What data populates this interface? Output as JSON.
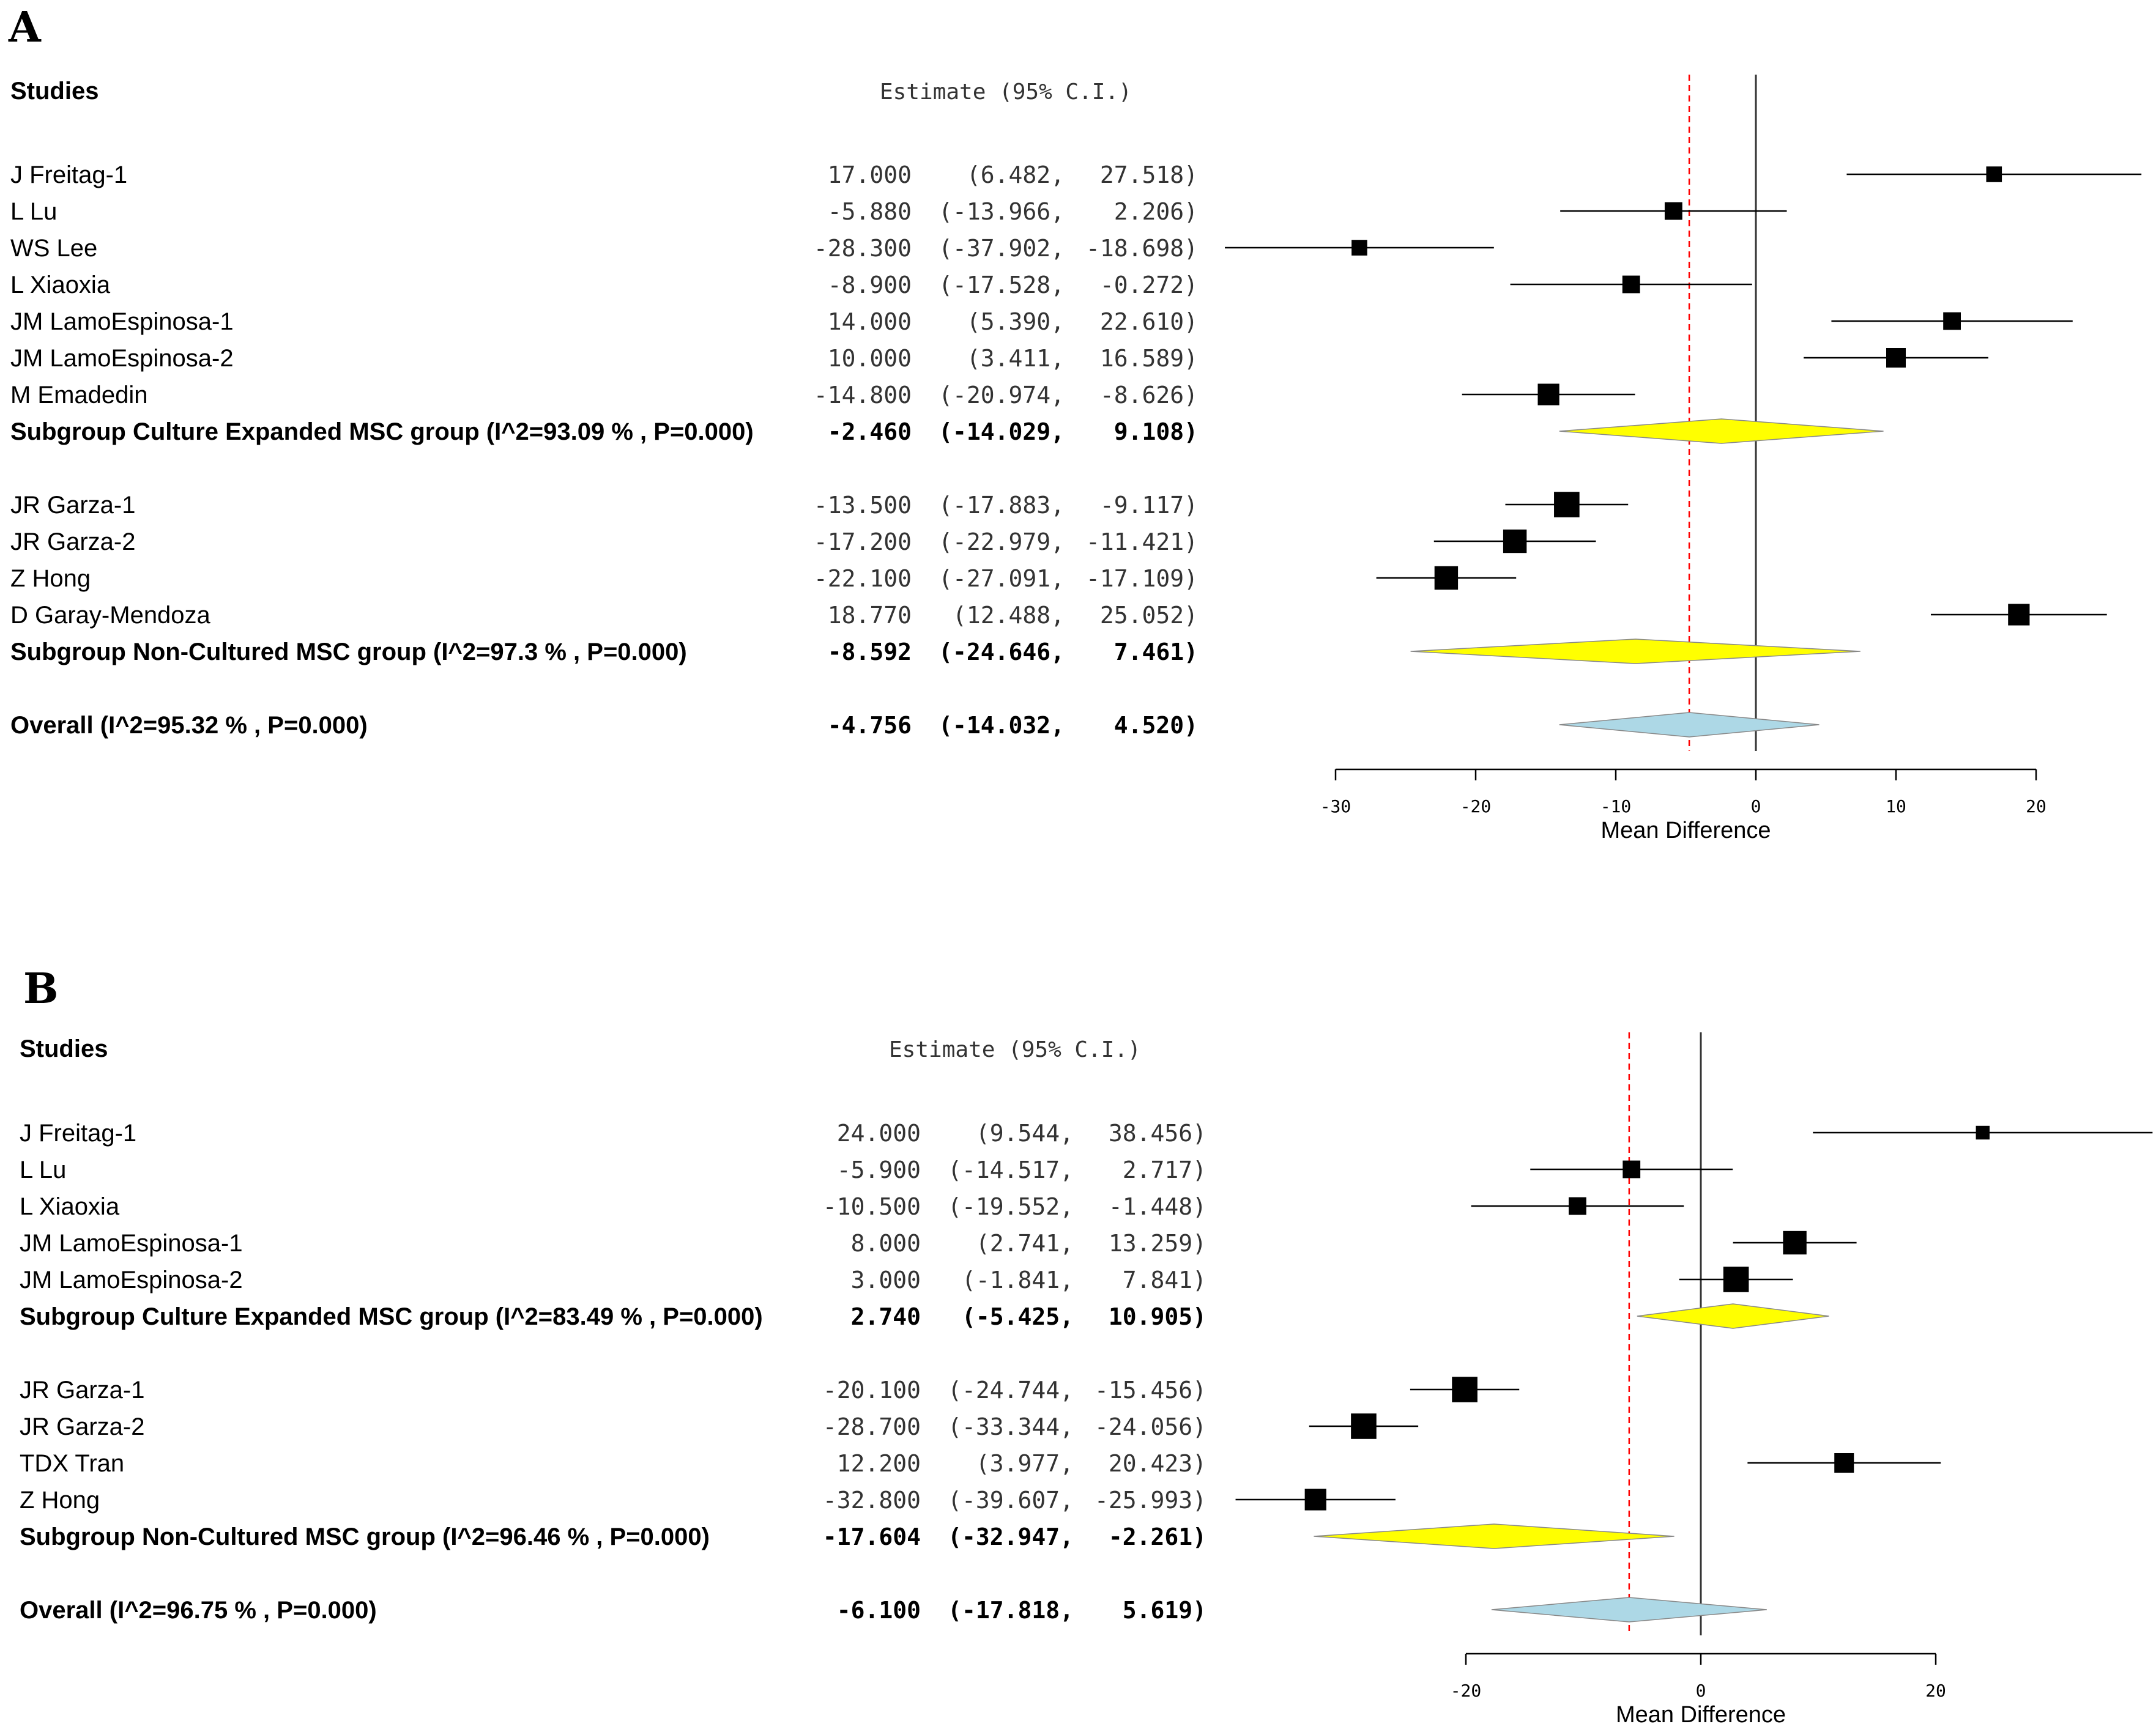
{
  "chart_data": [
    {
      "type": "forest",
      "panel_label": "A",
      "col_studies": "Studies",
      "col_estimate": "Estimate (95% C.I.)",
      "xlabel": "Mean Difference",
      "xticks": [
        -30,
        -20,
        -10,
        0,
        10,
        20
      ],
      "xlim": [
        -30,
        20
      ],
      "overall_reference": -4.756,
      "null_line": 0,
      "rows": [
        {
          "kind": "study",
          "label": "J Freitag-1",
          "est": 17.0,
          "lo": 6.482,
          "hi": 27.518,
          "est_text": "17.000",
          "lo_text": "(6.482,",
          "hi_text": "27.518)",
          "weight": 0.8
        },
        {
          "kind": "study",
          "label": "L Lu",
          "est": -5.88,
          "lo": -13.966,
          "hi": 2.206,
          "est_text": "-5.880",
          "lo_text": "(-13.966,",
          "hi_text": "2.206)",
          "weight": 0.9
        },
        {
          "kind": "study",
          "label": "WS Lee",
          "est": -28.3,
          "lo": -37.902,
          "hi": -18.698,
          "est_text": "-28.300",
          "lo_text": "(-37.902,",
          "hi_text": "-18.698)",
          "weight": 0.8
        },
        {
          "kind": "study",
          "label": "L Xiaoxia",
          "est": -8.9,
          "lo": -17.528,
          "hi": -0.272,
          "est_text": "-8.900",
          "lo_text": "(-17.528,",
          "hi_text": "-0.272)",
          "weight": 0.9
        },
        {
          "kind": "study",
          "label": "JM LamoEspinosa-1",
          "est": 14.0,
          "lo": 5.39,
          "hi": 22.61,
          "est_text": "14.000",
          "lo_text": "(5.390,",
          "hi_text": "22.610)",
          "weight": 0.9
        },
        {
          "kind": "study",
          "label": "JM LamoEspinosa-2",
          "est": 10.0,
          "lo": 3.411,
          "hi": 16.589,
          "est_text": "10.000",
          "lo_text": "(3.411,",
          "hi_text": "16.589)",
          "weight": 1.0
        },
        {
          "kind": "study",
          "label": "M Emadedin",
          "est": -14.8,
          "lo": -20.974,
          "hi": -8.626,
          "est_text": "-14.800",
          "lo_text": "(-20.974,",
          "hi_text": "-8.626)",
          "weight": 1.1
        },
        {
          "kind": "subgroup",
          "label": "Subgroup Culture Expanded MSC group (I^2=93.09 % , P=0.000)",
          "est": -2.46,
          "lo": -14.029,
          "hi": 9.108,
          "est_text": "-2.460",
          "lo_text": "(-14.029,",
          "hi_text": "9.108)",
          "fill": "#ffff00"
        },
        {
          "kind": "gap"
        },
        {
          "kind": "study",
          "label": "JR Garza-1",
          "est": -13.5,
          "lo": -17.883,
          "hi": -9.117,
          "est_text": "-13.500",
          "lo_text": "(-17.883,",
          "hi_text": "-9.117)",
          "weight": 1.3
        },
        {
          "kind": "study",
          "label": "JR Garza-2",
          "est": -17.2,
          "lo": -22.979,
          "hi": -11.421,
          "est_text": "-17.200",
          "lo_text": "(-22.979,",
          "hi_text": "-11.421)",
          "weight": 1.2
        },
        {
          "kind": "study",
          "label": "Z Hong",
          "est": -22.1,
          "lo": -27.091,
          "hi": -17.109,
          "est_text": "-22.100",
          "lo_text": "(-27.091,",
          "hi_text": "-17.109)",
          "weight": 1.2
        },
        {
          "kind": "study",
          "label": "D Garay-Mendoza",
          "est": 18.77,
          "lo": 12.488,
          "hi": 25.052,
          "est_text": "18.770",
          "lo_text": "(12.488,",
          "hi_text": "25.052)",
          "weight": 1.1
        },
        {
          "kind": "subgroup",
          "label": "Subgroup Non-Cultured MSC group (I^2=97.3 % , P=0.000)",
          "est": -8.592,
          "lo": -24.646,
          "hi": 7.461,
          "est_text": "-8.592",
          "lo_text": "(-24.646,",
          "hi_text": "7.461)",
          "fill": "#ffff00"
        },
        {
          "kind": "gap"
        },
        {
          "kind": "overall",
          "label": "Overall (I^2=95.32 % , P=0.000)",
          "est": -4.756,
          "lo": -14.032,
          "hi": 4.52,
          "est_text": "-4.756",
          "lo_text": "(-14.032,",
          "hi_text": "4.520)",
          "fill": "#add8e6"
        }
      ]
    },
    {
      "type": "forest",
      "panel_label": "B",
      "col_studies": "Studies",
      "col_estimate": "Estimate (95% C.I.)",
      "xlabel": "Mean Difference",
      "xticks": [
        -20,
        0,
        20
      ],
      "xlim": [
        -20,
        20
      ],
      "overall_reference": -6.1,
      "null_line": 0,
      "rows": [
        {
          "kind": "study",
          "label": "J Freitag-1",
          "est": 24.0,
          "lo": 9.544,
          "hi": 38.456,
          "est_text": "24.000",
          "lo_text": "(9.544,",
          "hi_text": "38.456)",
          "weight": 0.7
        },
        {
          "kind": "study",
          "label": "L Lu",
          "est": -5.9,
          "lo": -14.517,
          "hi": 2.717,
          "est_text": "-5.900",
          "lo_text": "(-14.517,",
          "hi_text": "2.717)",
          "weight": 0.9
        },
        {
          "kind": "study",
          "label": "L Xiaoxia",
          "est": -10.5,
          "lo": -19.552,
          "hi": -1.448,
          "est_text": "-10.500",
          "lo_text": "(-19.552,",
          "hi_text": "-1.448)",
          "weight": 0.9
        },
        {
          "kind": "study",
          "label": "JM LamoEspinosa-1",
          "est": 8.0,
          "lo": 2.741,
          "hi": 13.259,
          "est_text": "8.000",
          "lo_text": "(2.741,",
          "hi_text": "13.259)",
          "weight": 1.2
        },
        {
          "kind": "study",
          "label": "JM LamoEspinosa-2",
          "est": 3.0,
          "lo": -1.841,
          "hi": 7.841,
          "est_text": "3.000",
          "lo_text": "(-1.841,",
          "hi_text": "7.841)",
          "weight": 1.3
        },
        {
          "kind": "subgroup",
          "label": "Subgroup Culture Expanded MSC group (I^2=83.49 % , P=0.000)",
          "est": 2.74,
          "lo": -5.425,
          "hi": 10.905,
          "est_text": "2.740",
          "lo_text": "(-5.425,",
          "hi_text": "10.905)",
          "fill": "#ffff00"
        },
        {
          "kind": "gap"
        },
        {
          "kind": "study",
          "label": "JR Garza-1",
          "est": -20.1,
          "lo": -24.744,
          "hi": -15.456,
          "est_text": "-20.100",
          "lo_text": "(-24.744,",
          "hi_text": "-15.456)",
          "weight": 1.3
        },
        {
          "kind": "study",
          "label": "JR Garza-2",
          "est": -28.7,
          "lo": -33.344,
          "hi": -24.056,
          "est_text": "-28.700",
          "lo_text": "(-33.344,",
          "hi_text": "-24.056)",
          "weight": 1.3
        },
        {
          "kind": "study",
          "label": "TDX Tran",
          "est": 12.2,
          "lo": 3.977,
          "hi": 20.423,
          "est_text": "12.200",
          "lo_text": "(3.977,",
          "hi_text": "20.423)",
          "weight": 1.0
        },
        {
          "kind": "study",
          "label": "Z Hong",
          "est": -32.8,
          "lo": -39.607,
          "hi": -25.993,
          "est_text": "-32.800",
          "lo_text": "(-39.607,",
          "hi_text": "-25.993)",
          "weight": 1.1
        },
        {
          "kind": "subgroup",
          "label": "Subgroup Non-Cultured MSC group (I^2=96.46 % , P=0.000)",
          "est": -17.604,
          "lo": -32.947,
          "hi": -2.261,
          "est_text": "-17.604",
          "lo_text": "(-32.947,",
          "hi_text": "-2.261)",
          "fill": "#ffff00"
        },
        {
          "kind": "gap"
        },
        {
          "kind": "overall",
          "label": "Overall (I^2=96.75 % , P=0.000)",
          "est": -6.1,
          "lo": -17.818,
          "hi": 5.619,
          "est_text": "-6.100",
          "lo_text": "(-17.818,",
          "hi_text": "5.619)",
          "fill": "#add8e6"
        }
      ]
    }
  ]
}
